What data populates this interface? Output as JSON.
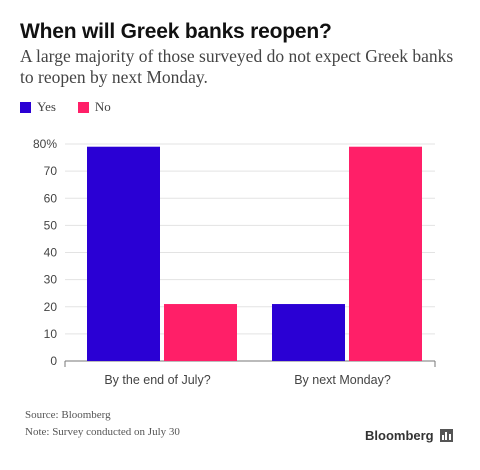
{
  "title": "When will Greek banks reopen?",
  "subtitle": "A large majority of those surveyed do not expect Greek banks to reopen by next Monday.",
  "footer": {
    "source": "Source: Bloomberg",
    "note": "Note: Survey conducted on July 30",
    "brand": "Bloomberg",
    "brand_icon": "bar-chart-icon"
  },
  "colors": {
    "yes": "#2A00D4",
    "no": "#FF1F68"
  },
  "chart_data": {
    "type": "bar",
    "title": "When will Greek banks reopen?",
    "subtitle": "A large majority of those surveyed do not expect Greek banks to reopen by next Monday.",
    "categories": [
      "By the end of July?",
      "By next Monday?"
    ],
    "series": [
      {
        "name": "Yes",
        "color": "#2A00D4",
        "values": [
          79,
          21
        ]
      },
      {
        "name": "No",
        "color": "#FF1F68",
        "values": [
          21,
          79
        ]
      }
    ],
    "ylim": [
      0,
      80
    ],
    "yticks": [
      0,
      10,
      20,
      30,
      40,
      50,
      60,
      70,
      80
    ],
    "ytick_labels": [
      "0",
      "10",
      "20",
      "30",
      "40",
      "50",
      "60",
      "70",
      "80%"
    ],
    "xlabel": "",
    "ylabel": "",
    "grid": true,
    "legend_position": "top-left"
  }
}
